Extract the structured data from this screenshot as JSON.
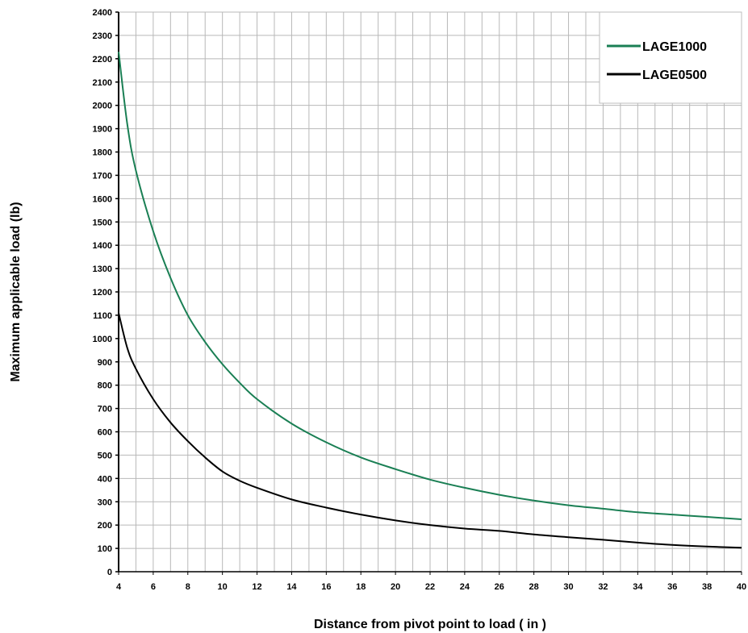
{
  "chart_data": {
    "type": "line",
    "xlabel": "Distance from pivot point to load ( in )",
    "ylabel": "Maximum applicable load (lb)",
    "xlim": [
      4,
      40
    ],
    "ylim": [
      0,
      2400
    ],
    "x_ticks": [
      4,
      6,
      8,
      10,
      12,
      14,
      16,
      18,
      20,
      22,
      24,
      26,
      28,
      30,
      32,
      34,
      36,
      38,
      40
    ],
    "y_ticks": [
      0,
      100,
      200,
      300,
      400,
      500,
      600,
      700,
      800,
      900,
      1000,
      1100,
      1200,
      1300,
      1400,
      1500,
      1600,
      1700,
      1800,
      1900,
      2000,
      2100,
      2200,
      2300,
      2400
    ],
    "grid": true,
    "legend_position": "top-right",
    "series": [
      {
        "name": "LAGE1000",
        "color": "#1a7f54",
        "x": [
          4,
          4.5,
          5,
          6,
          7,
          8,
          9,
          10,
          11,
          12,
          14,
          16,
          18,
          20,
          22,
          24,
          26,
          28,
          30,
          32,
          34,
          36,
          38,
          40
        ],
        "y": [
          2230,
          1920,
          1720,
          1460,
          1260,
          1100,
          985,
          890,
          810,
          740,
          635,
          555,
          490,
          440,
          395,
          360,
          330,
          305,
          285,
          270,
          255,
          245,
          235,
          225
        ]
      },
      {
        "name": "LAGE0500",
        "color": "#000000",
        "x": [
          4,
          4.5,
          5,
          6,
          7,
          8,
          9,
          10,
          11,
          12,
          14,
          16,
          18,
          20,
          22,
          24,
          26,
          28,
          30,
          32,
          34,
          36,
          38,
          40
        ],
        "y": [
          1110,
          960,
          870,
          740,
          640,
          560,
          490,
          430,
          390,
          360,
          310,
          275,
          245,
          220,
          200,
          185,
          175,
          160,
          148,
          137,
          125,
          115,
          108,
          103
        ]
      }
    ]
  }
}
